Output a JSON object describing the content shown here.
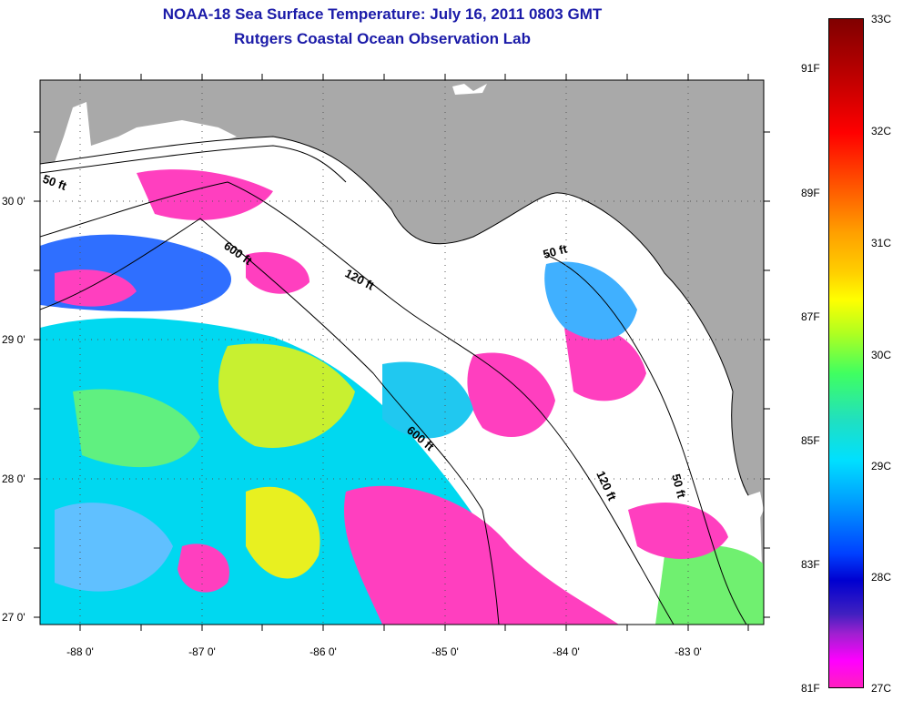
{
  "title_line1": "NOAA-18 Sea Surface Temperature:  July 16, 2011 0803 GMT",
  "title_line2": "Rutgers Coastal Ocean Observation Lab",
  "map": {
    "lat_ticks": [
      "30 0'",
      "29 0'",
      "28 0'",
      "27 0'"
    ],
    "lon_ticks": [
      "-88 0'",
      "-87 0'",
      "-86 0'",
      "-85 0'",
      "-84 0'",
      "-83 0'"
    ],
    "contour_labels": [
      "50 ft",
      "600 ft",
      "120 ft",
      "50 ft",
      "600 ft",
      "120 ft",
      "50 ft"
    ],
    "colors": {
      "land": "#a9a9a9",
      "cloud": "#ffffff",
      "cold": "#ff3fbf",
      "mid": "#00d8f0",
      "warm": "#e8f020"
    }
  },
  "colorbar": {
    "celsius": [
      "33C",
      "32C",
      "31C",
      "30C",
      "29C",
      "28C",
      "27C"
    ],
    "fahrenheit": [
      "91F",
      "89F",
      "87F",
      "85F",
      "83F",
      "81F"
    ]
  }
}
